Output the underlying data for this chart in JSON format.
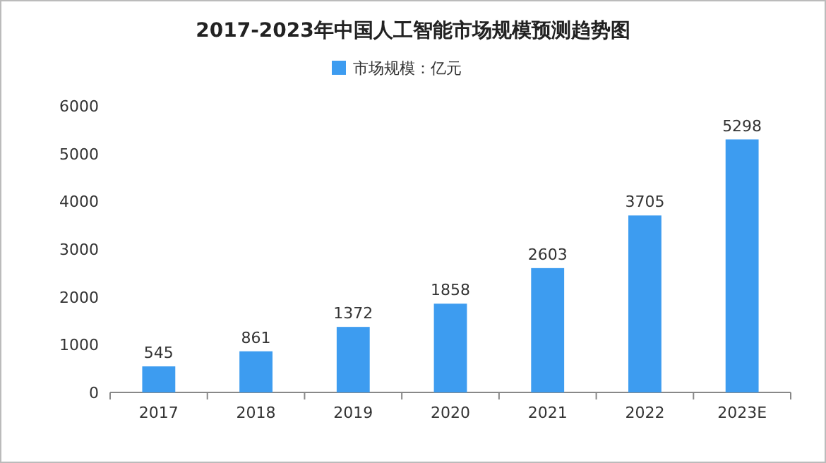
{
  "chart_data": {
    "type": "bar",
    "title": "2017-2023年中国人工智能市场规模预测趋势图",
    "categories": [
      "2017",
      "2018",
      "2019",
      "2020",
      "2021",
      "2022",
      "2023E"
    ],
    "series": [
      {
        "name": "市场规模：亿元",
        "color": "#3d9cf0",
        "values": [
          545,
          861,
          1372,
          1858,
          2603,
          3705,
          5298
        ]
      }
    ],
    "ylim": [
      0,
      6000
    ],
    "yticks": [
      0,
      1000,
      2000,
      3000,
      4000,
      5000,
      6000
    ],
    "data_labels": true,
    "legend": "top",
    "grid": false
  }
}
